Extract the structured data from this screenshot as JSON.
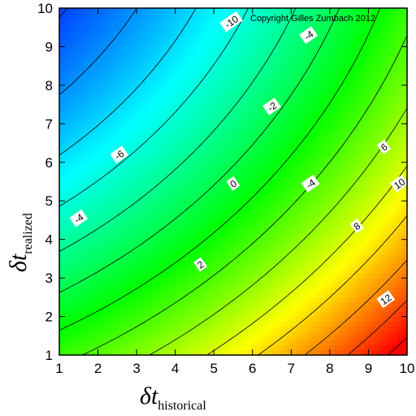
{
  "chart_data": {
    "type": "heatmap",
    "title": "",
    "annotation": "Copyright Gilles Zumbach 2012",
    "xlabel": {
      "symbol": "δt",
      "subscript": "historical"
    },
    "ylabel": {
      "symbol": "δt",
      "subscript": "realized"
    },
    "xlim": [
      1,
      10
    ],
    "ylim": [
      1,
      10
    ],
    "xticks": [
      "1",
      "2",
      "3",
      "4",
      "5",
      "6",
      "7",
      "8",
      "9",
      "10"
    ],
    "yticks": [
      "1",
      "2",
      "3",
      "4",
      "5",
      "6",
      "7",
      "8",
      "9",
      "10"
    ],
    "grid": false,
    "colormap": [
      "#0000ff",
      "#00ffff",
      "#00ff00",
      "#ffff00",
      "#ff0000"
    ],
    "color_range": [
      -14,
      14
    ],
    "contour_interval": 2,
    "contour_labels": [
      {
        "text": "-10",
        "x": 5.45,
        "y": 9.65
      },
      {
        "text": "-4",
        "x": 7.45,
        "y": 9.3
      },
      {
        "text": "-2",
        "x": 6.5,
        "y": 7.45
      },
      {
        "text": "-6",
        "x": 2.55,
        "y": 6.2
      },
      {
        "text": "-4",
        "x": 1.5,
        "y": 4.55
      },
      {
        "text": "0",
        "x": 5.5,
        "y": 5.45
      },
      {
        "text": "-4",
        "x": 7.5,
        "y": 5.45
      },
      {
        "text": "2",
        "x": 4.65,
        "y": 3.35
      },
      {
        "text": "6",
        "x": 9.4,
        "y": 6.4
      },
      {
        "text": "10",
        "x": 9.8,
        "y": 5.45
      },
      {
        "text": "8",
        "x": 8.7,
        "y": 4.35
      },
      {
        "text": "12",
        "x": 9.45,
        "y": 2.45
      }
    ]
  }
}
